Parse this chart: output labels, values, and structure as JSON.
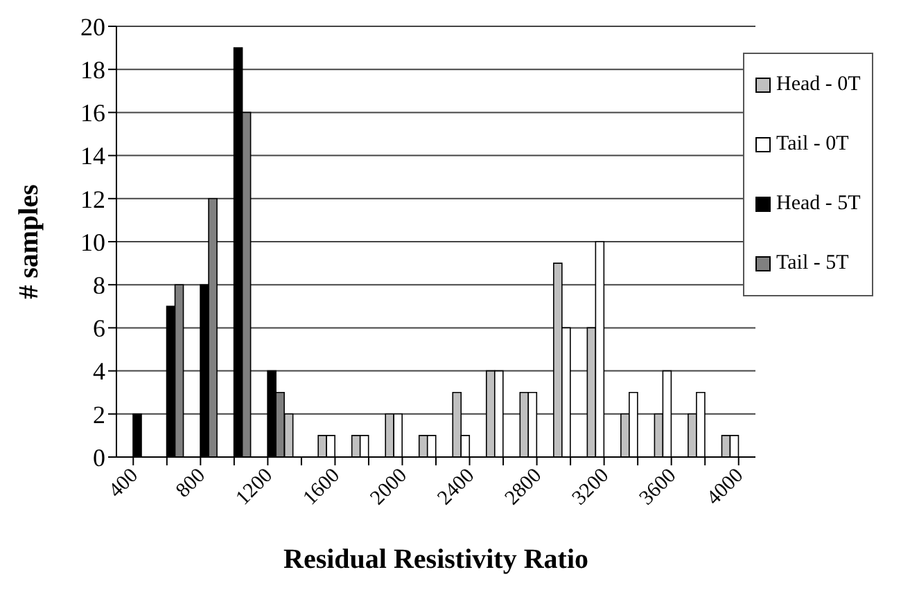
{
  "chart_data": {
    "type": "bar",
    "xlabel": "Residual Resistivity Ratio",
    "ylabel": "# samples",
    "categories": [
      "400",
      null,
      "800",
      null,
      "1200",
      null,
      "1600",
      null,
      "2000",
      null,
      "2400",
      null,
      "2800",
      null,
      "3200",
      null,
      "3600",
      null,
      "4000"
    ],
    "series": [
      {
        "name": "Head - 0T",
        "color": "#c0c0c0",
        "values": [
          0,
          0,
          0,
          0,
          0,
          2,
          1,
          1,
          2,
          1,
          3,
          4,
          3,
          9,
          6,
          2,
          2,
          2,
          1
        ]
      },
      {
        "name": "Tail - 0T",
        "color": "#ffffff",
        "values": [
          0,
          0,
          0,
          0,
          0,
          0,
          1,
          1,
          2,
          1,
          1,
          4,
          3,
          6,
          10,
          3,
          4,
          3,
          1
        ]
      },
      {
        "name": "Head - 5T",
        "color": "#000000",
        "values": [
          2,
          7,
          8,
          19,
          4,
          0,
          0,
          0,
          0,
          0,
          0,
          0,
          0,
          0,
          0,
          0,
          0,
          0,
          0
        ]
      },
      {
        "name": "Tail - 5T",
        "color": "#808080",
        "values": [
          0,
          8,
          12,
          16,
          3,
          0,
          0,
          0,
          0,
          0,
          0,
          0,
          0,
          0,
          0,
          0,
          0,
          0,
          0
        ]
      }
    ],
    "ylim": [
      0,
      20
    ],
    "yticks": [
      0,
      2,
      4,
      6,
      8,
      10,
      12,
      14,
      16,
      18,
      20
    ],
    "grid": "y",
    "legend": "top right"
  }
}
